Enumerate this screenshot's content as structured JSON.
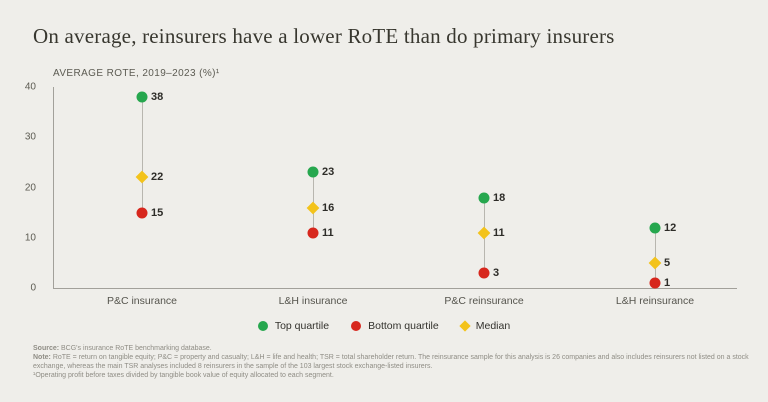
{
  "title": "On average, reinsurers have a lower RoTE than do primary insurers",
  "colors": {
    "background": "#efeeea",
    "top_quartile": "#26a74e",
    "bottom_quartile": "#d7271d",
    "median": "#f3c31b",
    "axis": "#a2a09a",
    "connector": "#b8b6af",
    "value_text": "#2d2c28",
    "label_text": "#55544d",
    "footnote_text": "#8f8d85"
  },
  "chart_data": {
    "type": "scatter",
    "subtype": "vertical-dot-plot-with-connectors",
    "title": "AVERAGE ROTE, 2019–2023 (%)¹",
    "categories": [
      "P&C insurance",
      "L&H insurance",
      "P&C reinsurance",
      "L&H reinsurance"
    ],
    "series": [
      {
        "name": "Top quartile",
        "marker": "circle",
        "color_key": "top_quartile",
        "values": [
          38,
          23,
          18,
          12
        ]
      },
      {
        "name": "Median",
        "marker": "diamond",
        "color_key": "median",
        "values": [
          22,
          16,
          11,
          5
        ]
      },
      {
        "name": "Bottom quartile",
        "marker": "circle",
        "color_key": "bottom_quartile",
        "values": [
          15,
          11,
          3,
          1
        ]
      }
    ],
    "xlabel": "",
    "ylabel": "",
    "ylim": [
      0,
      40
    ],
    "yticks": [
      0,
      10,
      20,
      30,
      40
    ],
    "grid": false,
    "legend_position": "bottom"
  },
  "legend": [
    {
      "label": "Top quartile",
      "marker": "circle",
      "color_key": "top_quartile"
    },
    {
      "label": "Bottom quartile",
      "marker": "circle",
      "color_key": "bottom_quartile"
    },
    {
      "label": "Median",
      "marker": "diamond",
      "color_key": "median"
    }
  ],
  "footnotes": {
    "source_label": "Source:",
    "source_text": " BCG's insurance RoTE benchmarking database.",
    "note_label": "Note:",
    "note_text": " RoTE = return on tangible equity; P&C = property and casualty; L&H = life and health; TSR = total shareholder return. The reinsurance sample for this analysis is 26 companies and also includes reinsurers not listed on a stock exchange, whereas the main TSR analyses included 8 reinsurers in the sample of the 103 largest stock exchange-listed insurers.",
    "footnote1": "¹Operating profit before taxes divided by tangible book value of equity allocated to each segment."
  }
}
